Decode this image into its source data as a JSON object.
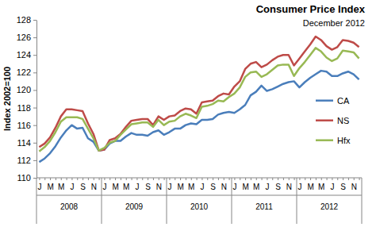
{
  "chart_data": {
    "type": "line",
    "title": "Consumer Price Index",
    "subtitle": "December 2012",
    "y_label": "Index 2002=100",
    "categories": [
      "J",
      null,
      "M",
      null,
      "M",
      null,
      "J",
      null,
      "S",
      null,
      "N",
      null,
      "J",
      null,
      "M",
      null,
      "M",
      null,
      "J",
      null,
      "S",
      null,
      "N",
      null,
      "J",
      null,
      "M",
      null,
      "M",
      null,
      "J",
      null,
      "S",
      null,
      "N",
      null,
      "J",
      null,
      "M",
      null,
      "M",
      null,
      "J",
      null,
      "S",
      null,
      "N",
      null,
      "J",
      null,
      "M",
      null,
      "M",
      null,
      "J",
      null,
      "S",
      null,
      "N",
      null
    ],
    "x_groups": [
      "2008",
      "2009",
      "2010",
      "2011",
      "2012"
    ],
    "series": [
      {
        "name": "CA",
        "color": "#4a7ebb",
        "values": [
          111.8,
          112.2,
          112.8,
          113.6,
          114.6,
          115.4,
          116.0,
          115.6,
          115.7,
          114.5,
          114.1,
          113.1,
          113.2,
          113.9,
          114.2,
          114.2,
          114.7,
          115.1,
          114.9,
          114.9,
          114.8,
          115.2,
          115.4,
          114.9,
          115.2,
          115.6,
          115.6,
          116.0,
          116.2,
          116.1,
          116.6,
          116.6,
          116.7,
          117.2,
          117.4,
          117.5,
          117.4,
          117.8,
          118.3,
          119.4,
          119.8,
          120.5,
          119.9,
          120.1,
          120.4,
          120.7,
          120.9,
          121.0,
          120.3,
          120.9,
          121.4,
          121.8,
          122.2,
          122.1,
          121.6,
          121.6,
          121.9,
          122.1,
          121.8,
          121.2
        ]
      },
      {
        "name": "NS",
        "color": "#be4b48",
        "values": [
          113.5,
          113.9,
          114.6,
          115.7,
          117.0,
          117.8,
          117.8,
          117.7,
          117.6,
          116.2,
          115.0,
          113.1,
          113.2,
          114.3,
          114.5,
          115.0,
          115.8,
          116.5,
          116.6,
          116.7,
          116.7,
          116.0,
          117.0,
          116.6,
          117.0,
          117.1,
          117.6,
          117.9,
          117.8,
          117.3,
          118.6,
          118.7,
          118.8,
          119.3,
          119.6,
          119.5,
          120.4,
          121.0,
          122.4,
          123.0,
          123.2,
          122.6,
          122.9,
          123.4,
          123.8,
          124.0,
          124.0,
          122.8,
          123.6,
          124.4,
          125.2,
          126.1,
          125.7,
          125.0,
          124.6,
          124.9,
          125.7,
          125.6,
          125.4,
          124.9
        ]
      },
      {
        "name": "Hfx",
        "color": "#98b954",
        "values": [
          113.0,
          113.5,
          114.2,
          115.2,
          116.4,
          116.9,
          116.9,
          116.9,
          116.7,
          115.6,
          114.5,
          113.1,
          113.4,
          114.0,
          114.2,
          114.9,
          115.5,
          116.1,
          116.2,
          116.3,
          116.3,
          115.8,
          116.6,
          116.0,
          116.4,
          116.5,
          117.0,
          117.3,
          117.1,
          116.8,
          118.1,
          118.2,
          118.4,
          118.8,
          118.7,
          119.2,
          119.6,
          120.3,
          121.5,
          122.0,
          122.1,
          121.5,
          121.8,
          122.3,
          122.8,
          122.9,
          122.9,
          121.6,
          122.5,
          123.2,
          124.0,
          124.8,
          124.4,
          123.7,
          123.3,
          123.6,
          124.5,
          124.4,
          124.3,
          123.6
        ]
      }
    ],
    "ylim": [
      110,
      128
    ],
    "yticks": [
      110,
      112,
      114,
      116,
      118,
      120,
      122,
      124,
      126,
      128
    ],
    "grid": false,
    "legend": "right"
  }
}
